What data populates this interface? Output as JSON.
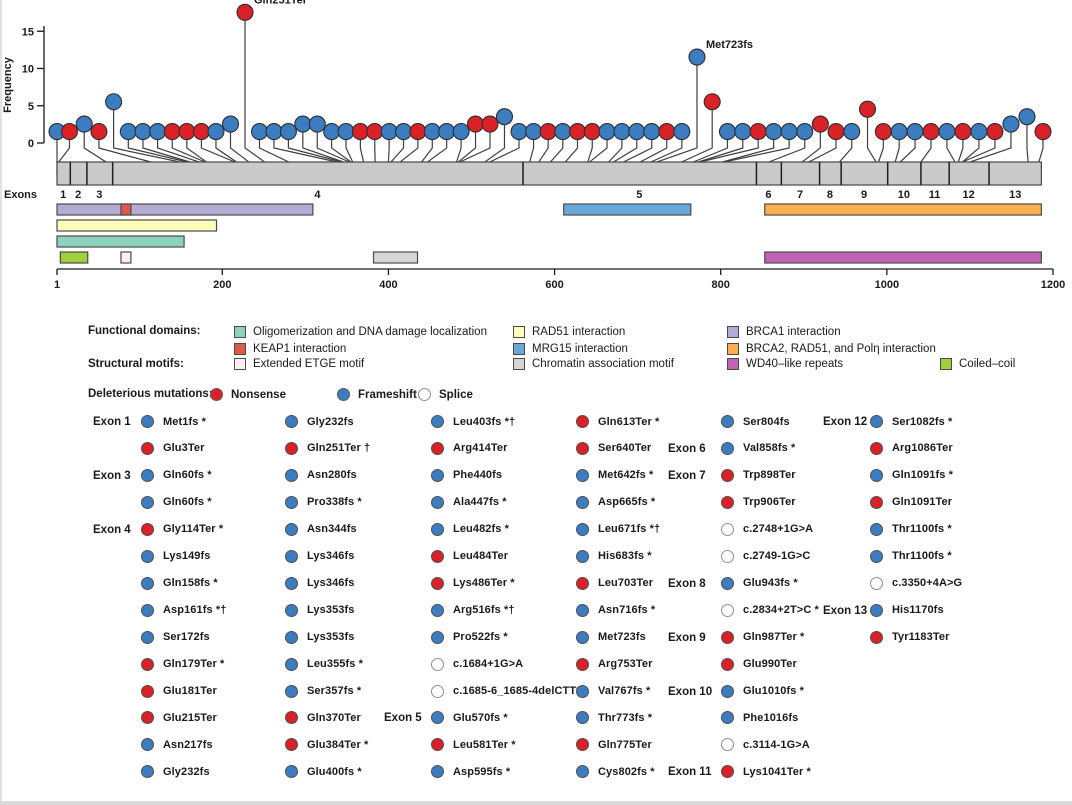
{
  "colors": {
    "nonsense": "#da2128",
    "frameshift": "#3b7dc0",
    "splice_fill": "#ffffff",
    "splice_stroke": "#8f8f8f",
    "stem": "#3f3f3f",
    "bar_fill": "#cacaca",
    "bar_stroke": "#474747",
    "oligo": "#8cd2be",
    "keap1": "#e2574c",
    "etge": "#fceef2",
    "rad51": "#ffffbb",
    "mrg15": "#68a8d8",
    "chromatin": "#d6d6d6",
    "brca1": "#b3abd4",
    "brca2": "#f9b04e",
    "wd40": "#bf64b7",
    "coiled": "#9fce3e"
  },
  "chart_data": {
    "type": "lollipop",
    "ylabel": "Frequency",
    "yticks": [
      0,
      5,
      10,
      15
    ],
    "ylim": [
      0,
      17
    ],
    "xticks": [
      1,
      200,
      400,
      600,
      800,
      1000,
      1200
    ],
    "xlim": [
      1,
      1200
    ],
    "protein_end": 1186,
    "exons_label": "Exons",
    "exons": [
      {
        "n": "1",
        "start": 1,
        "end": 16
      },
      {
        "n": "2",
        "start": 17,
        "end": 36
      },
      {
        "n": "3",
        "start": 37,
        "end": 67
      },
      {
        "n": "4",
        "start": 68,
        "end": 561
      },
      {
        "n": "5",
        "start": 562,
        "end": 842
      },
      {
        "n": "6",
        "start": 843,
        "end": 872
      },
      {
        "n": "7",
        "start": 873,
        "end": 918
      },
      {
        "n": "8",
        "start": 919,
        "end": 944
      },
      {
        "n": "9",
        "start": 945,
        "end": 1000
      },
      {
        "n": "10",
        "start": 1001,
        "end": 1040
      },
      {
        "n": "11",
        "start": 1041,
        "end": 1074
      },
      {
        "n": "12",
        "start": 1075,
        "end": 1122
      },
      {
        "n": "13",
        "start": 1123,
        "end": 1186
      }
    ],
    "domains": [
      {
        "row": 0,
        "start": 1,
        "end": 309,
        "color_key": "brca1",
        "name": "BRCA1 interaction"
      },
      {
        "row": 0,
        "start": 78,
        "end": 90,
        "color_key": "keap1",
        "name": "KEAP1 interaction"
      },
      {
        "row": 0,
        "start": 611,
        "end": 764,
        "color_key": "mrg15",
        "name": "MRG15 interaction"
      },
      {
        "row": 0,
        "start": 853,
        "end": 1186,
        "color_key": "brca2",
        "name": "BRCA2, RAD51, and Polη interaction"
      },
      {
        "row": 1,
        "start": 1,
        "end": 193,
        "color_key": "rad51",
        "name": "RAD51 interaction"
      },
      {
        "row": 2,
        "start": 1,
        "end": 154,
        "color_key": "oligo",
        "name": "Oligomerization and DNA damage localization"
      },
      {
        "row": 3,
        "start": 5,
        "end": 38,
        "color_key": "coiled",
        "name": "Coiled–coil"
      },
      {
        "row": 3,
        "start": 78,
        "end": 90,
        "color_key": "etge",
        "name": "Extended ETGE motif"
      },
      {
        "row": 3,
        "start": 382,
        "end": 435,
        "color_key": "chromatin",
        "name": "Chromatin association motif"
      },
      {
        "row": 3,
        "start": 853,
        "end": 1186,
        "color_key": "wd40",
        "name": "WD40–like repeats"
      }
    ],
    "lollipops": [
      {
        "p": 1,
        "f": 1,
        "t": "fs"
      },
      {
        "p": 3,
        "f": 1,
        "t": "ns"
      },
      {
        "p": 60,
        "f": 2,
        "t": "fs"
      },
      {
        "p": 114,
        "f": 1,
        "t": "ns"
      },
      {
        "p": 149,
        "f": 5,
        "t": "fs"
      },
      {
        "p": 158,
        "f": 1,
        "t": "fs"
      },
      {
        "p": 161,
        "f": 1,
        "t": "fs"
      },
      {
        "p": 172,
        "f": 1,
        "t": "fs"
      },
      {
        "p": 179,
        "f": 1,
        "t": "ns"
      },
      {
        "p": 181,
        "f": 1,
        "t": "ns"
      },
      {
        "p": 215,
        "f": 1,
        "t": "ns"
      },
      {
        "p": 217,
        "f": 1,
        "t": "fs"
      },
      {
        "p": 232,
        "f": 2,
        "t": "fs"
      },
      {
        "p": 251,
        "f": 17,
        "t": "ns",
        "l": "Gln251Ter"
      },
      {
        "p": 280,
        "f": 1,
        "t": "fs"
      },
      {
        "p": 338,
        "f": 1,
        "t": "fs"
      },
      {
        "p": 344,
        "f": 1,
        "t": "fs"
      },
      {
        "p": 346,
        "f": 2,
        "t": "fs"
      },
      {
        "p": 353,
        "f": 2,
        "t": "fs"
      },
      {
        "p": 355,
        "f": 1,
        "t": "fs"
      },
      {
        "p": 357,
        "f": 1,
        "t": "fs"
      },
      {
        "p": 370,
        "f": 1,
        "t": "ns"
      },
      {
        "p": 384,
        "f": 1,
        "t": "ns"
      },
      {
        "p": 400,
        "f": 1,
        "t": "fs"
      },
      {
        "p": 403,
        "f": 1,
        "t": "fs"
      },
      {
        "p": 414,
        "f": 1,
        "t": "ns"
      },
      {
        "p": 440,
        "f": 1,
        "t": "fs"
      },
      {
        "p": 447,
        "f": 1,
        "t": "fs"
      },
      {
        "p": 482,
        "f": 1,
        "t": "fs"
      },
      {
        "p": 484,
        "f": 2,
        "t": "ns"
      },
      {
        "p": 486,
        "f": 2,
        "t": "ns"
      },
      {
        "p": 516,
        "f": 3,
        "t": "fs"
      },
      {
        "p": 522,
        "f": 1,
        "t": "fs"
      },
      {
        "p": 570,
        "f": 1,
        "t": "fs"
      },
      {
        "p": 581,
        "f": 1,
        "t": "ns"
      },
      {
        "p": 595,
        "f": 1,
        "t": "fs"
      },
      {
        "p": 613,
        "f": 1,
        "t": "ns"
      },
      {
        "p": 640,
        "f": 1,
        "t": "ns"
      },
      {
        "p": 642,
        "f": 1,
        "t": "fs"
      },
      {
        "p": 665,
        "f": 1,
        "t": "fs"
      },
      {
        "p": 671,
        "f": 1,
        "t": "fs"
      },
      {
        "p": 683,
        "f": 1,
        "t": "fs"
      },
      {
        "p": 703,
        "f": 1,
        "t": "ns"
      },
      {
        "p": 716,
        "f": 1,
        "t": "fs"
      },
      {
        "p": 723,
        "f": 11,
        "t": "fs",
        "l": "Met723fs"
      },
      {
        "p": 753,
        "f": 5,
        "t": "ns"
      },
      {
        "p": 767,
        "f": 1,
        "t": "fs"
      },
      {
        "p": 773,
        "f": 1,
        "t": "fs"
      },
      {
        "p": 775,
        "f": 1,
        "t": "ns"
      },
      {
        "p": 802,
        "f": 1,
        "t": "fs"
      },
      {
        "p": 804,
        "f": 1,
        "t": "fs"
      },
      {
        "p": 858,
        "f": 1,
        "t": "fs"
      },
      {
        "p": 898,
        "f": 2,
        "t": "ns"
      },
      {
        "p": 906,
        "f": 1,
        "t": "ns"
      },
      {
        "p": 943,
        "f": 1,
        "t": "fs"
      },
      {
        "p": 987,
        "f": 4,
        "t": "ns"
      },
      {
        "p": 990,
        "f": 1,
        "t": "ns"
      },
      {
        "p": 1010,
        "f": 1,
        "t": "fs"
      },
      {
        "p": 1016,
        "f": 1,
        "t": "fs"
      },
      {
        "p": 1041,
        "f": 1,
        "t": "ns"
      },
      {
        "p": 1082,
        "f": 1,
        "t": "fs"
      },
      {
        "p": 1086,
        "f": 1,
        "t": "ns"
      },
      {
        "p": 1091,
        "f": 1,
        "t": "fs"
      },
      {
        "p": 1091,
        "f": 1,
        "t": "ns"
      },
      {
        "p": 1100,
        "f": 2,
        "t": "fs"
      },
      {
        "p": 1170,
        "f": 3,
        "t": "fs"
      },
      {
        "p": 1183,
        "f": 1,
        "t": "ns"
      }
    ]
  },
  "legend": {
    "functional_domains_label": "Functional domains:",
    "structural_motifs_label": "Structural motifs:",
    "deleterious_label": "Deleterious mutations:",
    "entries": [
      {
        "col": 0,
        "row": 0,
        "color_key": "oligo",
        "label": "Oligomerization and DNA damage localization"
      },
      {
        "col": 0,
        "row": 1,
        "color_key": "keap1",
        "label": "KEAP1 interaction"
      },
      {
        "col": 0,
        "row": 2,
        "color_key": "etge",
        "label": "Extended ETGE motif"
      },
      {
        "col": 1,
        "row": 0,
        "color_key": "rad51",
        "label": "RAD51 interaction"
      },
      {
        "col": 1,
        "row": 1,
        "color_key": "mrg15",
        "label": "MRG15 interaction"
      },
      {
        "col": 1,
        "row": 2,
        "color_key": "chromatin",
        "label": "Chromatin association motif"
      },
      {
        "col": 2,
        "row": 0,
        "color_key": "brca1",
        "label": "BRCA1 interaction"
      },
      {
        "col": 2,
        "row": 1,
        "color_key": "brca2",
        "label": "BRCA2, RAD51, and Polη interaction"
      },
      {
        "col": 2,
        "row": 2,
        "color_key": "wd40",
        "label": "WD40–like repeats"
      },
      {
        "col": 3,
        "row": 2,
        "color_key": "coiled",
        "label": "Coiled–coil"
      }
    ],
    "mutation_types": [
      {
        "label": "Nonsense",
        "type": "nonsense"
      },
      {
        "label": "Frameshift",
        "type": "frameshift"
      },
      {
        "label": "Splice",
        "type": "splice"
      }
    ]
  },
  "mutation_list": {
    "columns": [
      {
        "items": [
          {
            "exon": "Exon 1",
            "type": "frameshift",
            "name": "Met1fs *"
          },
          {
            "type": "nonsense",
            "name": "Glu3Ter"
          },
          {
            "exon": "Exon 3",
            "type": "frameshift",
            "name": "Gln60fs *"
          },
          {
            "type": "frameshift",
            "name": "Gln60fs *"
          },
          {
            "exon": "Exon 4",
            "type": "nonsense",
            "name": "Gly114Ter *"
          },
          {
            "type": "frameshift",
            "name": "Lys149fs"
          },
          {
            "type": "frameshift",
            "name": "Gln158fs *"
          },
          {
            "type": "frameshift",
            "name": "Asp161fs *†"
          },
          {
            "type": "frameshift",
            "name": "Ser172fs"
          },
          {
            "type": "nonsense",
            "name": "Gln179Ter *"
          },
          {
            "type": "nonsense",
            "name": "Glu181Ter"
          },
          {
            "type": "nonsense",
            "name": "Glu215Ter"
          },
          {
            "type": "frameshift",
            "name": "Asn217fs"
          },
          {
            "type": "frameshift",
            "name": "Gly232fs"
          }
        ]
      },
      {
        "items": [
          {
            "type": "frameshift",
            "name": "Gly232fs"
          },
          {
            "type": "nonsense",
            "name": "Gln251Ter †"
          },
          {
            "type": "frameshift",
            "name": "Asn280fs"
          },
          {
            "type": "frameshift",
            "name": "Pro338fs *"
          },
          {
            "type": "frameshift",
            "name": "Asn344fs"
          },
          {
            "type": "frameshift",
            "name": "Lys346fs"
          },
          {
            "type": "frameshift",
            "name": "Lys346fs"
          },
          {
            "type": "frameshift",
            "name": "Lys353fs"
          },
          {
            "type": "frameshift",
            "name": "Lys353fs"
          },
          {
            "type": "frameshift",
            "name": "Leu355fs *"
          },
          {
            "type": "frameshift",
            "name": "Ser357fs *"
          },
          {
            "type": "nonsense",
            "name": "Gln370Ter"
          },
          {
            "type": "nonsense",
            "name": "Glu384Ter *"
          },
          {
            "type": "frameshift",
            "name": "Glu400fs *"
          }
        ]
      },
      {
        "items": [
          {
            "type": "frameshift",
            "name": "Leu403fs *†"
          },
          {
            "type": "nonsense",
            "name": "Arg414Ter"
          },
          {
            "type": "frameshift",
            "name": "Phe440fs"
          },
          {
            "type": "frameshift",
            "name": "Ala447fs *"
          },
          {
            "type": "frameshift",
            "name": "Leu482fs *"
          },
          {
            "type": "nonsense",
            "name": "Leu484Ter"
          },
          {
            "type": "nonsense",
            "name": "Lys486Ter *"
          },
          {
            "type": "frameshift",
            "name": "Arg516fs *†"
          },
          {
            "type": "frameshift",
            "name": "Pro522fs *"
          },
          {
            "type": "splice",
            "name": "c.1684+1G>A"
          },
          {
            "type": "splice",
            "name": "c.1685-6_1685-4delCTT*"
          },
          {
            "exon": "Exon 5",
            "type": "frameshift",
            "name": "Glu570fs *"
          },
          {
            "type": "nonsense",
            "name": "Leu581Ter *"
          },
          {
            "type": "frameshift",
            "name": "Asp595fs *"
          }
        ]
      },
      {
        "items": [
          {
            "type": "nonsense",
            "name": "Gln613Ter *"
          },
          {
            "type": "nonsense",
            "name": "Ser640Ter"
          },
          {
            "type": "frameshift",
            "name": "Met642fs *"
          },
          {
            "type": "frameshift",
            "name": "Asp665fs *"
          },
          {
            "type": "frameshift",
            "name": "Leu671fs *†"
          },
          {
            "type": "frameshift",
            "name": "His683fs *"
          },
          {
            "type": "nonsense",
            "name": "Leu703Ter"
          },
          {
            "type": "frameshift",
            "name": "Asn716fs *"
          },
          {
            "type": "frameshift",
            "name": "Met723fs"
          },
          {
            "type": "nonsense",
            "name": "Arg753Ter"
          },
          {
            "type": "frameshift",
            "name": "Val767fs *"
          },
          {
            "type": "frameshift",
            "name": "Thr773fs *"
          },
          {
            "type": "nonsense",
            "name": "Gln775Ter"
          },
          {
            "type": "frameshift",
            "name": "Cys802fs *"
          }
        ]
      },
      {
        "items": [
          {
            "type": "frameshift",
            "name": "Ser804fs"
          },
          {
            "exon": "Exon 6",
            "type": "frameshift",
            "name": "Val858fs *"
          },
          {
            "exon": "Exon 7",
            "type": "nonsense",
            "name": "Trp898Ter"
          },
          {
            "type": "nonsense",
            "name": "Trp906Ter"
          },
          {
            "type": "splice",
            "name": "c.2748+1G>A"
          },
          {
            "type": "splice",
            "name": "c.2749-1G>C"
          },
          {
            "exon": "Exon 8",
            "type": "frameshift",
            "name": "Glu943fs *"
          },
          {
            "type": "splice",
            "name": "c.2834+2T>C *"
          },
          {
            "exon": "Exon 9",
            "type": "nonsense",
            "name": "Gln987Ter *"
          },
          {
            "type": "nonsense",
            "name": "Glu990Ter"
          },
          {
            "exon": "Exon 10",
            "type": "frameshift",
            "name": "Glu1010fs *"
          },
          {
            "type": "frameshift",
            "name": "Phe1016fs"
          },
          {
            "type": "splice",
            "name": "c.3114-1G>A"
          },
          {
            "exon": "Exon 11",
            "type": "nonsense",
            "name": "Lys1041Ter *"
          }
        ]
      },
      {
        "items": [
          {
            "exon": "Exon 12",
            "type": "frameshift",
            "name": "Ser1082fs *"
          },
          {
            "type": "nonsense",
            "name": "Arg1086Ter"
          },
          {
            "type": "frameshift",
            "name": "Gln1091fs *"
          },
          {
            "type": "nonsense",
            "name": "Gln1091Ter"
          },
          {
            "type": "frameshift",
            "name": "Thr1100fs *"
          },
          {
            "type": "frameshift",
            "name": "Thr1100fs *"
          },
          {
            "type": "splice",
            "name": "c.3350+4A>G"
          },
          {
            "exon": "Exon 13",
            "type": "frameshift",
            "name": "His1170fs"
          },
          {
            "type": "nonsense",
            "name": "Tyr1183Ter"
          }
        ]
      }
    ]
  }
}
